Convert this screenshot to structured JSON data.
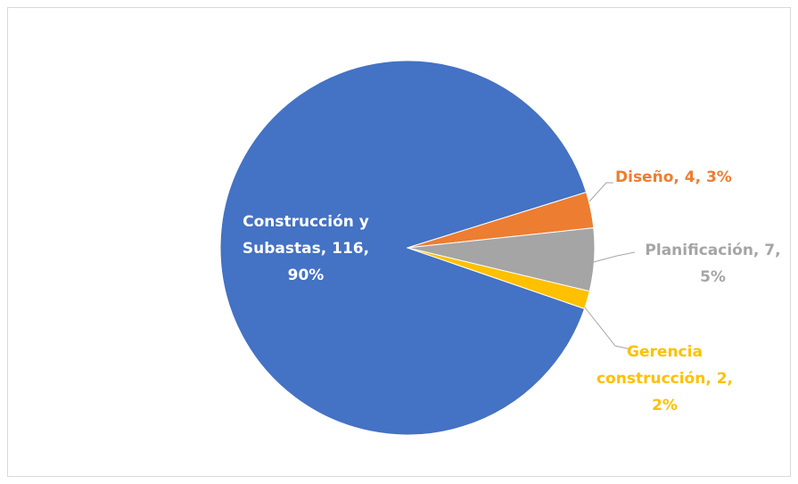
{
  "chart_data": {
    "type": "pie",
    "values": [
      116,
      4,
      7,
      2
    ],
    "value_labels": [
      "Construcción y Subastas, 116, 90%",
      "Diseño, 4, 3%",
      "Planificación, 7, 5%",
      "Gerencia construcción, 2, 2%"
    ],
    "colors": [
      "#4472c4",
      "#ed7d31",
      "#a5a5a5",
      "#ffc000"
    ],
    "start_angle": 109
  }
}
